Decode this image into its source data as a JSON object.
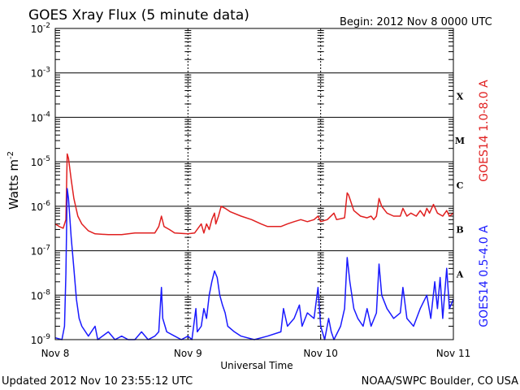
{
  "chart_data": {
    "type": "line",
    "title": "GOES Xray Flux (5 minute data)",
    "begin_label": "Begin:  2012 Nov 8 0000 UTC",
    "ylabel": "Watts m",
    "ylabel_exponent": "-2",
    "xlabel": "Universal Time",
    "y_scale": "log",
    "ylim": [
      1e-09,
      0.01
    ],
    "y_ticks": [
      {
        "base": "10",
        "exp": "-9",
        "value": 1e-09
      },
      {
        "base": "10",
        "exp": "-8",
        "value": 1e-08
      },
      {
        "base": "10",
        "exp": "-7",
        "value": 1e-07
      },
      {
        "base": "10",
        "exp": "-6",
        "value": 1e-06
      },
      {
        "base": "10",
        "exp": "-5",
        "value": 1e-05
      },
      {
        "base": "10",
        "exp": "-4",
        "value": 0.0001
      },
      {
        "base": "10",
        "exp": "-3",
        "value": 0.001
      },
      {
        "base": "10",
        "exp": "-2",
        "value": 0.01
      }
    ],
    "x_ticks": [
      "Nov 8",
      "Nov 9",
      "Nov 10",
      "Nov 11"
    ],
    "xlim_days": [
      0,
      3
    ],
    "flare_classes": [
      {
        "label": "X",
        "value": 0.0001
      },
      {
        "label": "M",
        "value": 1e-05
      },
      {
        "label": "C",
        "value": 1e-06
      },
      {
        "label": "B",
        "value": 1e-07
      },
      {
        "label": "A",
        "value": 1e-08
      }
    ],
    "series": [
      {
        "name": "GOES14 1.0-8.0 A",
        "color": "#e02020",
        "points": [
          [
            0.0,
            4e-07
          ],
          [
            0.03,
            3.5e-07
          ],
          [
            0.06,
            3.2e-07
          ],
          [
            0.08,
            5e-07
          ],
          [
            0.09,
            1.5e-05
          ],
          [
            0.1,
            1.2e-05
          ],
          [
            0.12,
            4e-06
          ],
          [
            0.14,
            1.5e-06
          ],
          [
            0.17,
            6e-07
          ],
          [
            0.2,
            4e-07
          ],
          [
            0.25,
            2.8e-07
          ],
          [
            0.3,
            2.4e-07
          ],
          [
            0.4,
            2.3e-07
          ],
          [
            0.5,
            2.3e-07
          ],
          [
            0.6,
            2.5e-07
          ],
          [
            0.75,
            2.5e-07
          ],
          [
            0.78,
            3.5e-07
          ],
          [
            0.8,
            6e-07
          ],
          [
            0.82,
            3.5e-07
          ],
          [
            0.86,
            3e-07
          ],
          [
            0.9,
            2.5e-07
          ],
          [
            1.0,
            2.4e-07
          ],
          [
            1.05,
            2.5e-07
          ],
          [
            1.1,
            4e-07
          ],
          [
            1.12,
            2.5e-07
          ],
          [
            1.14,
            4e-07
          ],
          [
            1.16,
            3e-07
          ],
          [
            1.18,
            5e-07
          ],
          [
            1.2,
            7e-07
          ],
          [
            1.21,
            4e-07
          ],
          [
            1.23,
            6e-07
          ],
          [
            1.25,
            1e-06
          ],
          [
            1.28,
            9e-07
          ],
          [
            1.32,
            7.5e-07
          ],
          [
            1.4,
            6e-07
          ],
          [
            1.48,
            5e-07
          ],
          [
            1.55,
            4e-07
          ],
          [
            1.6,
            3.5e-07
          ],
          [
            1.7,
            3.5e-07
          ],
          [
            1.75,
            4e-07
          ],
          [
            1.8,
            4.5e-07
          ],
          [
            1.85,
            5e-07
          ],
          [
            1.9,
            4.5e-07
          ],
          [
            1.95,
            5e-07
          ],
          [
            1.98,
            6e-07
          ],
          [
            2.0,
            4.5e-07
          ],
          [
            2.05,
            5e-07
          ],
          [
            2.1,
            7e-07
          ],
          [
            2.12,
            5e-07
          ],
          [
            2.18,
            5.5e-07
          ],
          [
            2.2,
            2e-06
          ],
          [
            2.21,
            1.8e-06
          ],
          [
            2.25,
            8e-07
          ],
          [
            2.3,
            6e-07
          ],
          [
            2.35,
            5.5e-07
          ],
          [
            2.38,
            6e-07
          ],
          [
            2.4,
            5e-07
          ],
          [
            2.42,
            6e-07
          ],
          [
            2.44,
            1.5e-06
          ],
          [
            2.46,
            1e-06
          ],
          [
            2.5,
            7e-07
          ],
          [
            2.55,
            6e-07
          ],
          [
            2.6,
            6e-07
          ],
          [
            2.62,
            9e-07
          ],
          [
            2.65,
            6e-07
          ],
          [
            2.68,
            7e-07
          ],
          [
            2.72,
            6e-07
          ],
          [
            2.75,
            8e-07
          ],
          [
            2.78,
            6e-07
          ],
          [
            2.8,
            9e-07
          ],
          [
            2.82,
            7e-07
          ],
          [
            2.85,
            1.1e-06
          ],
          [
            2.88,
            7e-07
          ],
          [
            2.92,
            6e-07
          ],
          [
            2.95,
            8e-07
          ],
          [
            2.97,
            6e-07
          ],
          [
            3.0,
            7e-07
          ]
        ]
      },
      {
        "name": "GOES14 0.5-4.0 A",
        "color": "#1a1aff",
        "points": [
          [
            0.0,
            1.1e-09
          ],
          [
            0.05,
            1e-09
          ],
          [
            0.07,
            2e-09
          ],
          [
            0.08,
            3e-08
          ],
          [
            0.09,
            2.5e-06
          ],
          [
            0.1,
            1.5e-06
          ],
          [
            0.12,
            2e-07
          ],
          [
            0.14,
            4e-08
          ],
          [
            0.16,
            8e-09
          ],
          [
            0.18,
            3e-09
          ],
          [
            0.2,
            2e-09
          ],
          [
            0.25,
            1.2e-09
          ],
          [
            0.3,
            2e-09
          ],
          [
            0.32,
            1e-09
          ],
          [
            0.4,
            1.5e-09
          ],
          [
            0.45,
            1e-09
          ],
          [
            0.5,
            1.2e-09
          ],
          [
            0.55,
            1e-09
          ],
          [
            0.6,
            1e-09
          ],
          [
            0.65,
            1.5e-09
          ],
          [
            0.7,
            1e-09
          ],
          [
            0.75,
            1.2e-09
          ],
          [
            0.78,
            1.5e-09
          ],
          [
            0.8,
            1.5e-08
          ],
          [
            0.81,
            3e-09
          ],
          [
            0.84,
            1.5e-09
          ],
          [
            0.9,
            1.2e-09
          ],
          [
            0.95,
            1e-09
          ],
          [
            1.0,
            1.2e-09
          ],
          [
            1.03,
            1e-09
          ],
          [
            1.06,
            5e-09
          ],
          [
            1.07,
            1.5e-09
          ],
          [
            1.1,
            2e-09
          ],
          [
            1.12,
            5e-09
          ],
          [
            1.14,
            3e-09
          ],
          [
            1.16,
            1e-08
          ],
          [
            1.18,
            2e-08
          ],
          [
            1.2,
            3.5e-08
          ],
          [
            1.22,
            2.5e-08
          ],
          [
            1.24,
            1e-08
          ],
          [
            1.26,
            6e-09
          ],
          [
            1.28,
            4e-09
          ],
          [
            1.3,
            2e-09
          ],
          [
            1.35,
            1.5e-09
          ],
          [
            1.4,
            1.2e-09
          ],
          [
            1.5,
            1e-09
          ],
          [
            1.6,
            1.2e-09
          ],
          [
            1.7,
            1.5e-09
          ],
          [
            1.72,
            5e-09
          ],
          [
            1.75,
            2e-09
          ],
          [
            1.8,
            3e-09
          ],
          [
            1.84,
            6e-09
          ],
          [
            1.86,
            2e-09
          ],
          [
            1.9,
            4e-09
          ],
          [
            1.95,
            3e-09
          ],
          [
            1.98,
            1.5e-08
          ],
          [
            2.0,
            2e-09
          ],
          [
            2.03,
            1e-09
          ],
          [
            2.06,
            3e-09
          ],
          [
            2.08,
            1.5e-09
          ],
          [
            2.1,
            1e-09
          ],
          [
            2.15,
            2e-09
          ],
          [
            2.18,
            5e-09
          ],
          [
            2.2,
            7e-08
          ],
          [
            2.22,
            2e-08
          ],
          [
            2.25,
            5e-09
          ],
          [
            2.28,
            3e-09
          ],
          [
            2.32,
            2e-09
          ],
          [
            2.35,
            5e-09
          ],
          [
            2.38,
            2e-09
          ],
          [
            2.42,
            4e-09
          ],
          [
            2.44,
            5e-08
          ],
          [
            2.46,
            1e-08
          ],
          [
            2.5,
            5e-09
          ],
          [
            2.55,
            3e-09
          ],
          [
            2.6,
            4e-09
          ],
          [
            2.62,
            1.5e-08
          ],
          [
            2.65,
            3e-09
          ],
          [
            2.7,
            2e-09
          ],
          [
            2.75,
            5e-09
          ],
          [
            2.8,
            1e-08
          ],
          [
            2.83,
            3e-09
          ],
          [
            2.86,
            2e-08
          ],
          [
            2.88,
            5e-09
          ],
          [
            2.9,
            2.5e-08
          ],
          [
            2.92,
            3e-09
          ],
          [
            2.95,
            4e-08
          ],
          [
            2.97,
            5e-09
          ],
          [
            3.0,
            8e-09
          ]
        ]
      }
    ]
  },
  "footer": {
    "updated": "Updated 2012 Nov 10 23:55:12 UTC",
    "credit": "NOAA/SWPC Boulder, CO USA"
  }
}
